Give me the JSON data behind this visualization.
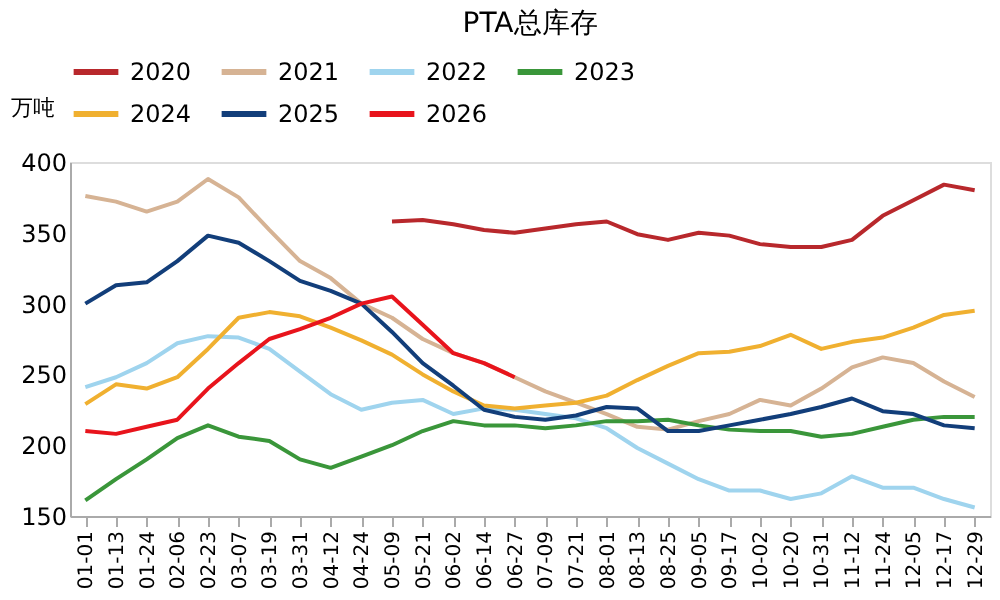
{
  "chart_data": {
    "type": "line",
    "title": "PTA总库存",
    "ylabel": "万吨",
    "categories": [
      "01-01",
      "01-13",
      "01-24",
      "02-06",
      "02-23",
      "03-07",
      "03-19",
      "03-31",
      "04-12",
      "04-24",
      "05-09",
      "05-21",
      "06-02",
      "06-14",
      "06-27",
      "07-09",
      "07-21",
      "08-01",
      "08-13",
      "08-25",
      "09-05",
      "09-17",
      "10-02",
      "10-20",
      "10-31",
      "11-12",
      "11-24",
      "12-05",
      "12-17",
      "12-29"
    ],
    "ylim": [
      150,
      400
    ],
    "yticks": [
      150,
      200,
      250,
      300,
      350,
      400
    ],
    "grid": false,
    "legend": "top",
    "marker": "none",
    "line_style": "solid",
    "series": [
      {
        "name": "2020",
        "color": "#b8282c",
        "values": [
          null,
          null,
          null,
          null,
          null,
          null,
          null,
          null,
          null,
          null,
          358,
          359,
          356,
          352,
          350,
          353,
          356,
          358,
          349,
          345,
          350,
          348,
          342,
          340,
          340,
          345,
          362,
          373,
          384,
          380
        ]
      },
      {
        "name": "2021",
        "color": "#d6b394",
        "values": [
          376,
          372,
          365,
          372,
          388,
          375,
          352,
          330,
          318,
          300,
          290,
          275,
          265,
          258,
          248,
          238,
          230,
          222,
          213,
          211,
          217,
          222,
          232,
          228,
          240,
          255,
          262,
          258,
          245,
          234
        ]
      },
      {
        "name": "2022",
        "color": "#9fd4ee",
        "values": [
          241,
          248,
          258,
          272,
          277,
          276,
          268,
          252,
          236,
          225,
          230,
          232,
          222,
          226,
          225,
          222,
          219,
          212,
          198,
          187,
          176,
          168,
          168,
          162,
          166,
          178,
          170,
          170,
          162,
          156
        ]
      },
      {
        "name": "2023",
        "color": "#3a963a",
        "values": [
          161,
          176,
          190,
          205,
          214,
          206,
          203,
          190,
          184,
          192,
          200,
          210,
          217,
          214,
          214,
          212,
          214,
          217,
          217,
          218,
          214,
          211,
          210,
          210,
          206,
          208,
          213,
          218,
          220,
          220
        ]
      },
      {
        "name": "2024",
        "color": "#f0b030",
        "values": [
          229,
          243,
          240,
          248,
          268,
          290,
          294,
          291,
          283,
          274,
          264,
          250,
          238,
          228,
          226,
          228,
          230,
          235,
          246,
          256,
          265,
          266,
          270,
          278,
          268,
          273,
          276,
          283,
          292,
          295
        ]
      },
      {
        "name": "2025",
        "color": "#123e7a",
        "values": [
          300,
          313,
          315,
          330,
          348,
          343,
          330,
          316,
          309,
          300,
          280,
          258,
          242,
          225,
          220,
          218,
          221,
          227,
          226,
          210,
          210,
          214,
          218,
          222,
          227,
          233,
          224,
          222,
          214,
          212
        ]
      },
      {
        "name": "2026",
        "color": "#e8141c",
        "values": [
          210,
          208,
          213,
          218,
          240,
          258,
          275,
          282,
          290,
          300,
          305,
          285,
          265,
          258,
          248,
          null,
          null,
          null,
          null,
          null,
          null,
          null,
          null,
          null,
          null,
          null,
          null,
          null,
          null,
          null
        ]
      }
    ]
  }
}
